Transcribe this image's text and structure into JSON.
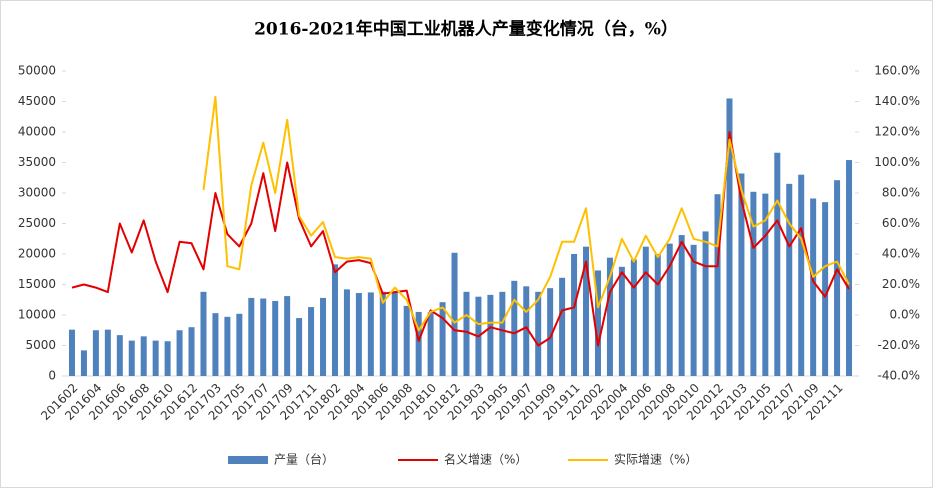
{
  "chart_data": {
    "type": "bar-line",
    "title": "2016-2021年中国工业机器人产量变化情况（台，%）",
    "categories": [
      "201602",
      null,
      "201604",
      null,
      "201606",
      null,
      "201608",
      null,
      "201610",
      null,
      "201612",
      null,
      "201703",
      null,
      "201705",
      null,
      "201707",
      null,
      "201709",
      null,
      "201711",
      null,
      "201802",
      null,
      "201804",
      null,
      "201806",
      null,
      "201808",
      null,
      "201810",
      null,
      "201812",
      null,
      "201903",
      null,
      "201905",
      null,
      "201907",
      null,
      "201909",
      null,
      "201911",
      null,
      "202002",
      null,
      "202004",
      null,
      "202006",
      null,
      "202008",
      null,
      "202010",
      null,
      "202012",
      null,
      "202103",
      null,
      "202105",
      null,
      "202107",
      null,
      "202109",
      null,
      "202111",
      null
    ],
    "series": [
      {
        "name": "产量（台）",
        "color": "#4F81BD",
        "kind": "bar",
        "values": [
          7600,
          4200,
          7500,
          7600,
          6700,
          5800,
          6500,
          5800,
          5700,
          7500,
          8000,
          13800,
          10300,
          9700,
          10200,
          12800,
          12700,
          12300,
          13100,
          9500,
          11300,
          12800,
          18300,
          14200,
          13600,
          13700,
          13800,
          13700,
          11500,
          10500,
          10400,
          12100,
          20200,
          13800,
          13000,
          13300,
          13800,
          15600,
          14700,
          13800,
          14400,
          16100,
          20000,
          21200,
          17300,
          19400,
          17900,
          19100,
          21200,
          20000,
          21700,
          23100,
          21500,
          23700,
          29800,
          45500,
          33200,
          30200,
          29900,
          36600,
          31500,
          33000,
          29100,
          28500,
          32100,
          35400
        ]
      },
      {
        "name": "名义增速（%）",
        "color": "#E30000",
        "kind": "line",
        "axis": "y2",
        "values": [
          18,
          20,
          18,
          15,
          60,
          41,
          62,
          35,
          15,
          48,
          47,
          30,
          80,
          53,
          45,
          60,
          93,
          55,
          100,
          63,
          45,
          55,
          28,
          35,
          36,
          34,
          14,
          15,
          16,
          -17,
          3,
          -2,
          -10,
          -11,
          -14,
          -8,
          -10,
          -12,
          -8,
          -20,
          -15,
          3,
          5,
          35,
          -20,
          15,
          28,
          18,
          28,
          20,
          32,
          48,
          35,
          32,
          32,
          120,
          75,
          44,
          52,
          62,
          45,
          57,
          22,
          12,
          30,
          17
        ]
      },
      {
        "name": "实际增速（%）",
        "color": "#FFC000",
        "kind": "line",
        "axis": "y2",
        "values": [
          null,
          null,
          null,
          null,
          null,
          null,
          null,
          null,
          null,
          null,
          null,
          82,
          143,
          32,
          30,
          85,
          113,
          80,
          128,
          65,
          52,
          61,
          38,
          37,
          38,
          37,
          8,
          18,
          10,
          -10,
          2,
          5,
          -5,
          0,
          -6,
          -5,
          -5,
          10,
          2,
          10,
          25,
          48,
          48,
          70,
          5,
          25,
          50,
          35,
          52,
          38,
          50,
          70,
          50,
          48,
          45,
          115,
          82,
          58,
          62,
          75,
          60,
          50,
          25,
          32,
          35,
          20
        ]
      }
    ],
    "ylim": [
      0,
      50000
    ],
    "yticks": [
      0,
      5000,
      10000,
      15000,
      20000,
      25000,
      30000,
      35000,
      40000,
      45000,
      50000
    ],
    "y2lim": [
      -40,
      160
    ],
    "y2ticks": [
      {
        "value": -40,
        "label": "-40.0%"
      },
      {
        "value": -20,
        "label": "-20.0%"
      },
      {
        "value": 0,
        "label": "0.0%"
      },
      {
        "value": 20,
        "label": "20.0%"
      },
      {
        "value": 40,
        "label": "40.0%"
      },
      {
        "value": 60,
        "label": "60.0%"
      },
      {
        "value": 80,
        "label": "80.0%"
      },
      {
        "value": 100,
        "label": "100.0%"
      },
      {
        "value": 120,
        "label": "120.0%"
      },
      {
        "value": 140,
        "label": "140.0%"
      },
      {
        "value": 160,
        "label": "160.0%"
      }
    ],
    "legend": "bottom"
  }
}
